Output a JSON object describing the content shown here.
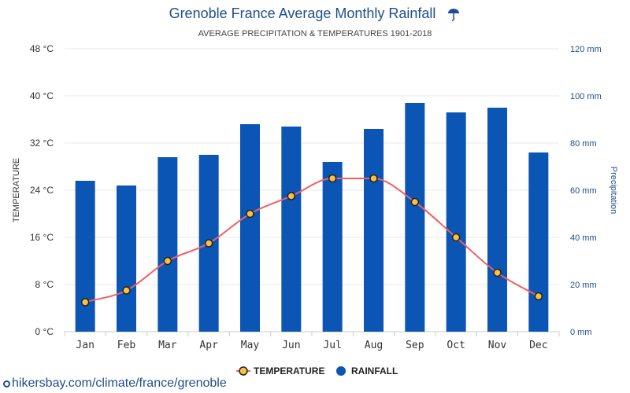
{
  "chart_data": {
    "type": "bar+line",
    "title": "Grenoble France Average Monthly Rainfall",
    "title_icon": "umbrella-rain-icon",
    "subtitle": "AVERAGE PRECIPITATION & TEMPERATURES 1901-2018",
    "categories": [
      "Jan",
      "Feb",
      "Mar",
      "Apr",
      "May",
      "Jun",
      "Jul",
      "Aug",
      "Sep",
      "Oct",
      "Nov",
      "Dec"
    ],
    "series": [
      {
        "name": "RAINFALL",
        "type": "bar",
        "axis": "right",
        "unit": "mm",
        "color": "#0b55b4",
        "values": [
          64,
          62,
          74,
          75,
          88,
          87,
          72,
          86,
          97,
          93,
          95,
          76
        ]
      },
      {
        "name": "TEMPERATURE",
        "type": "line",
        "axis": "left",
        "unit": "°C",
        "color": "#f06060",
        "marker_fill": "#f7c046",
        "marker_stroke": "#222222",
        "values": [
          5,
          7,
          12,
          15,
          20,
          23,
          26,
          26,
          22,
          16,
          10,
          6
        ]
      }
    ],
    "y_left": {
      "label": "TEMPERATURE",
      "range": [
        0,
        48
      ],
      "ticks": [
        "0 °C",
        "8 °C",
        "16 °C",
        "24 °C",
        "32 °C",
        "40 °C",
        "48 °C"
      ]
    },
    "y_right": {
      "label": "Precipitation",
      "range": [
        0,
        120
      ],
      "ticks": [
        "0 mm",
        "20 mm",
        "40 mm",
        "60 mm",
        "80 mm",
        "100 mm",
        "120 mm"
      ]
    },
    "grid": true,
    "legend": {
      "placement": "bottom-center",
      "items": [
        {
          "label": "TEMPERATURE",
          "marker": "line-dot"
        },
        {
          "label": "RAINFALL",
          "marker": "circle"
        }
      ]
    }
  },
  "source": {
    "text": "hikersbay.com/climate/france/grenoble",
    "icon": "location-pin-icon"
  }
}
